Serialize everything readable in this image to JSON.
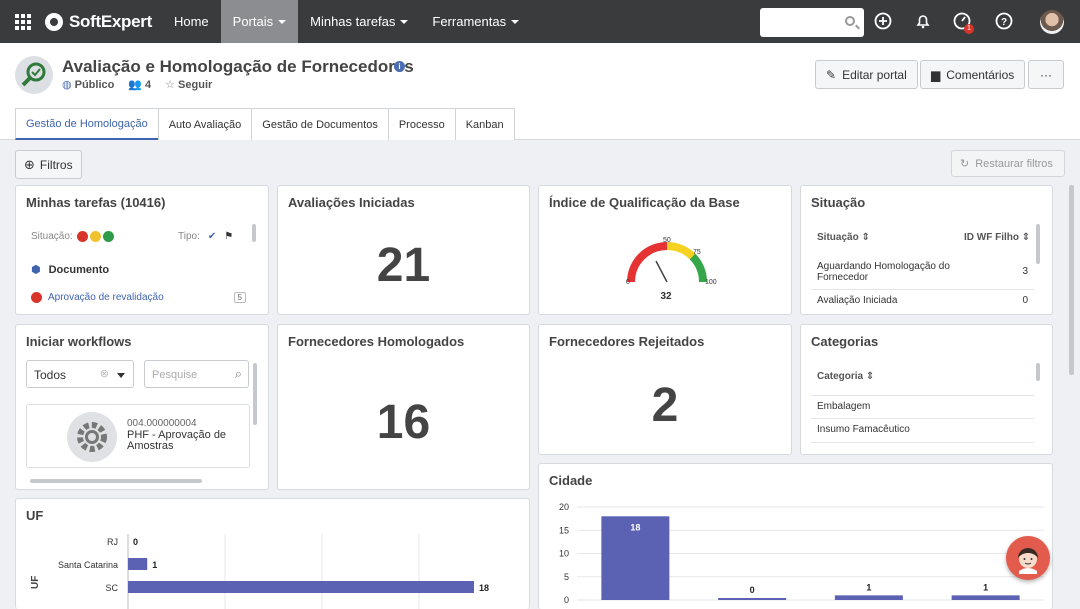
{
  "topbar": {
    "brand": "SoftExpert",
    "nav": [
      {
        "label": "Home",
        "active": false,
        "caret": false
      },
      {
        "label": "Portais",
        "active": true,
        "caret": true
      },
      {
        "label": "Minhas tarefas",
        "active": false,
        "caret": true
      },
      {
        "label": "Ferramentas",
        "active": false,
        "caret": true
      }
    ],
    "notification_badge": "1"
  },
  "header": {
    "title": "Avaliação e Homologação de Fornecedores",
    "visibility": "Público",
    "members": "4",
    "follow": "Seguir",
    "edit_button": "Editar portal",
    "comments_button": "Comentários",
    "more_button": "···"
  },
  "tabs": [
    "Gestão de Homologação",
    "Auto Avaliação",
    "Gestão de Documentos",
    "Processo",
    "Kanban"
  ],
  "toolbar": {
    "filters": "Filtros",
    "restore": "Restaurar filtros"
  },
  "tasks": {
    "title": "Minhas tarefas (10416)",
    "situacao_label": "Situação:",
    "tipo_label": "Tipo:",
    "group": "Documento",
    "item": "Aprovação de revalidação",
    "item_count": "5"
  },
  "avaliacoes": {
    "title": "Avaliações Iniciadas",
    "value": "21"
  },
  "indice": {
    "title": "Índice de Qualificação da Base",
    "value": "32",
    "ticks": [
      "0",
      "50",
      "75",
      "100"
    ]
  },
  "situacao": {
    "title": "Situação",
    "col1": "Situação",
    "col2": "ID WF Filho",
    "rows": [
      {
        "name": "Aguardando Homologação do Fornecedor",
        "value": "3"
      },
      {
        "name": "Avaliação Iniciada",
        "value": "0"
      }
    ]
  },
  "workflows": {
    "title": "Iniciar workflows",
    "select_value": "Todos",
    "search_placeholder": "Pesquise",
    "item_code": "004.000000004",
    "item_name": "PHF - Aprovação de Amostras"
  },
  "homologados": {
    "title": "Fornecedores Homologados",
    "value": "16"
  },
  "rejeitados": {
    "title": "Fornecedores Rejeitados",
    "value": "2"
  },
  "categorias": {
    "title": "Categorias",
    "col": "Categoria",
    "rows": [
      "Embalagem",
      "Insumo Famacêutico"
    ]
  },
  "chart_data": [
    {
      "type": "bar",
      "title": "UF",
      "ylabel": "UF",
      "orientation": "horizontal",
      "categories": [
        "RJ",
        "Santa Catarina",
        "SC"
      ],
      "values": [
        0,
        1,
        18
      ],
      "xlim": [
        0,
        18
      ]
    },
    {
      "type": "bar",
      "title": "Cidade",
      "categories": [
        "",
        "",
        "",
        ""
      ],
      "values": [
        18,
        0,
        1,
        1
      ],
      "ylim": [
        0,
        20
      ],
      "yticks": [
        "0",
        "5",
        "10",
        "15",
        "20"
      ]
    }
  ],
  "colors": {
    "topbar": "#3a3b3d",
    "accent": "#3f64ad",
    "bar": "#5b62b3"
  }
}
